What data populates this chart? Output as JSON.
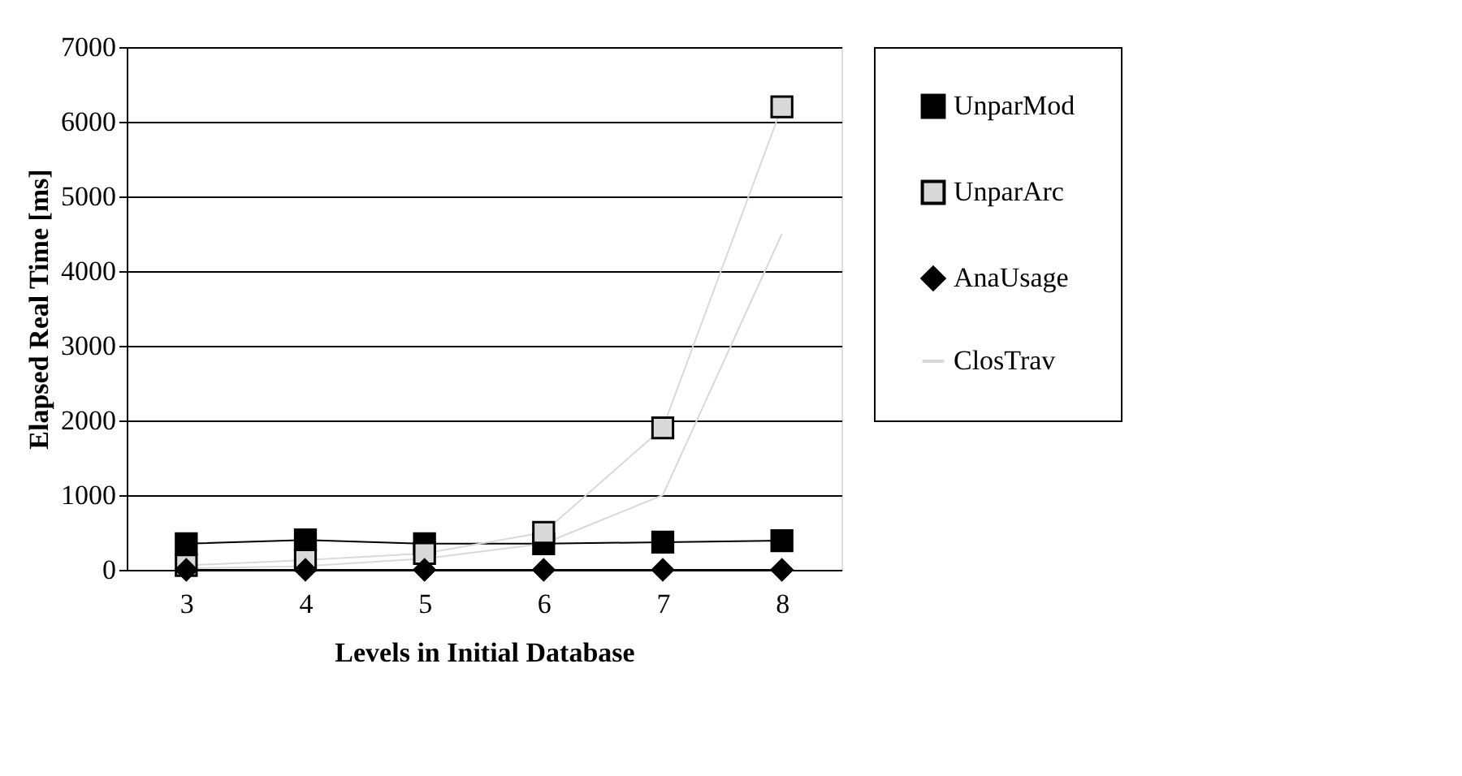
{
  "chart_data": {
    "type": "line",
    "xlabel": "Levels in Initial Database",
    "ylabel": "Elapsed Real Time [ms]",
    "categories": [
      "3",
      "4",
      "5",
      "6",
      "7",
      "8"
    ],
    "ylim": [
      0,
      7000
    ],
    "yticks": [
      0,
      1000,
      2000,
      3000,
      4000,
      5000,
      6000,
      7000
    ],
    "grid": "y",
    "legend": "right",
    "line_style": "solid",
    "series": [
      {
        "name": "UnparMod",
        "color": "#000000",
        "marker": "square",
        "values": [
          350,
          400,
          350,
          350,
          370,
          390
        ]
      },
      {
        "name": "UnparArc",
        "color": "#d9d9d9",
        "marker": "square",
        "values": [
          60,
          130,
          220,
          500,
          1900,
          6200
        ]
      },
      {
        "name": "AnaUsage",
        "color": "#000000",
        "marker": "diamond",
        "values": [
          0,
          0,
          0,
          0,
          0,
          0
        ]
      },
      {
        "name": "ClosTrav",
        "color": "#d9d9d9",
        "marker": "none",
        "values": [
          20,
          50,
          150,
          350,
          1000,
          4500
        ]
      }
    ]
  }
}
